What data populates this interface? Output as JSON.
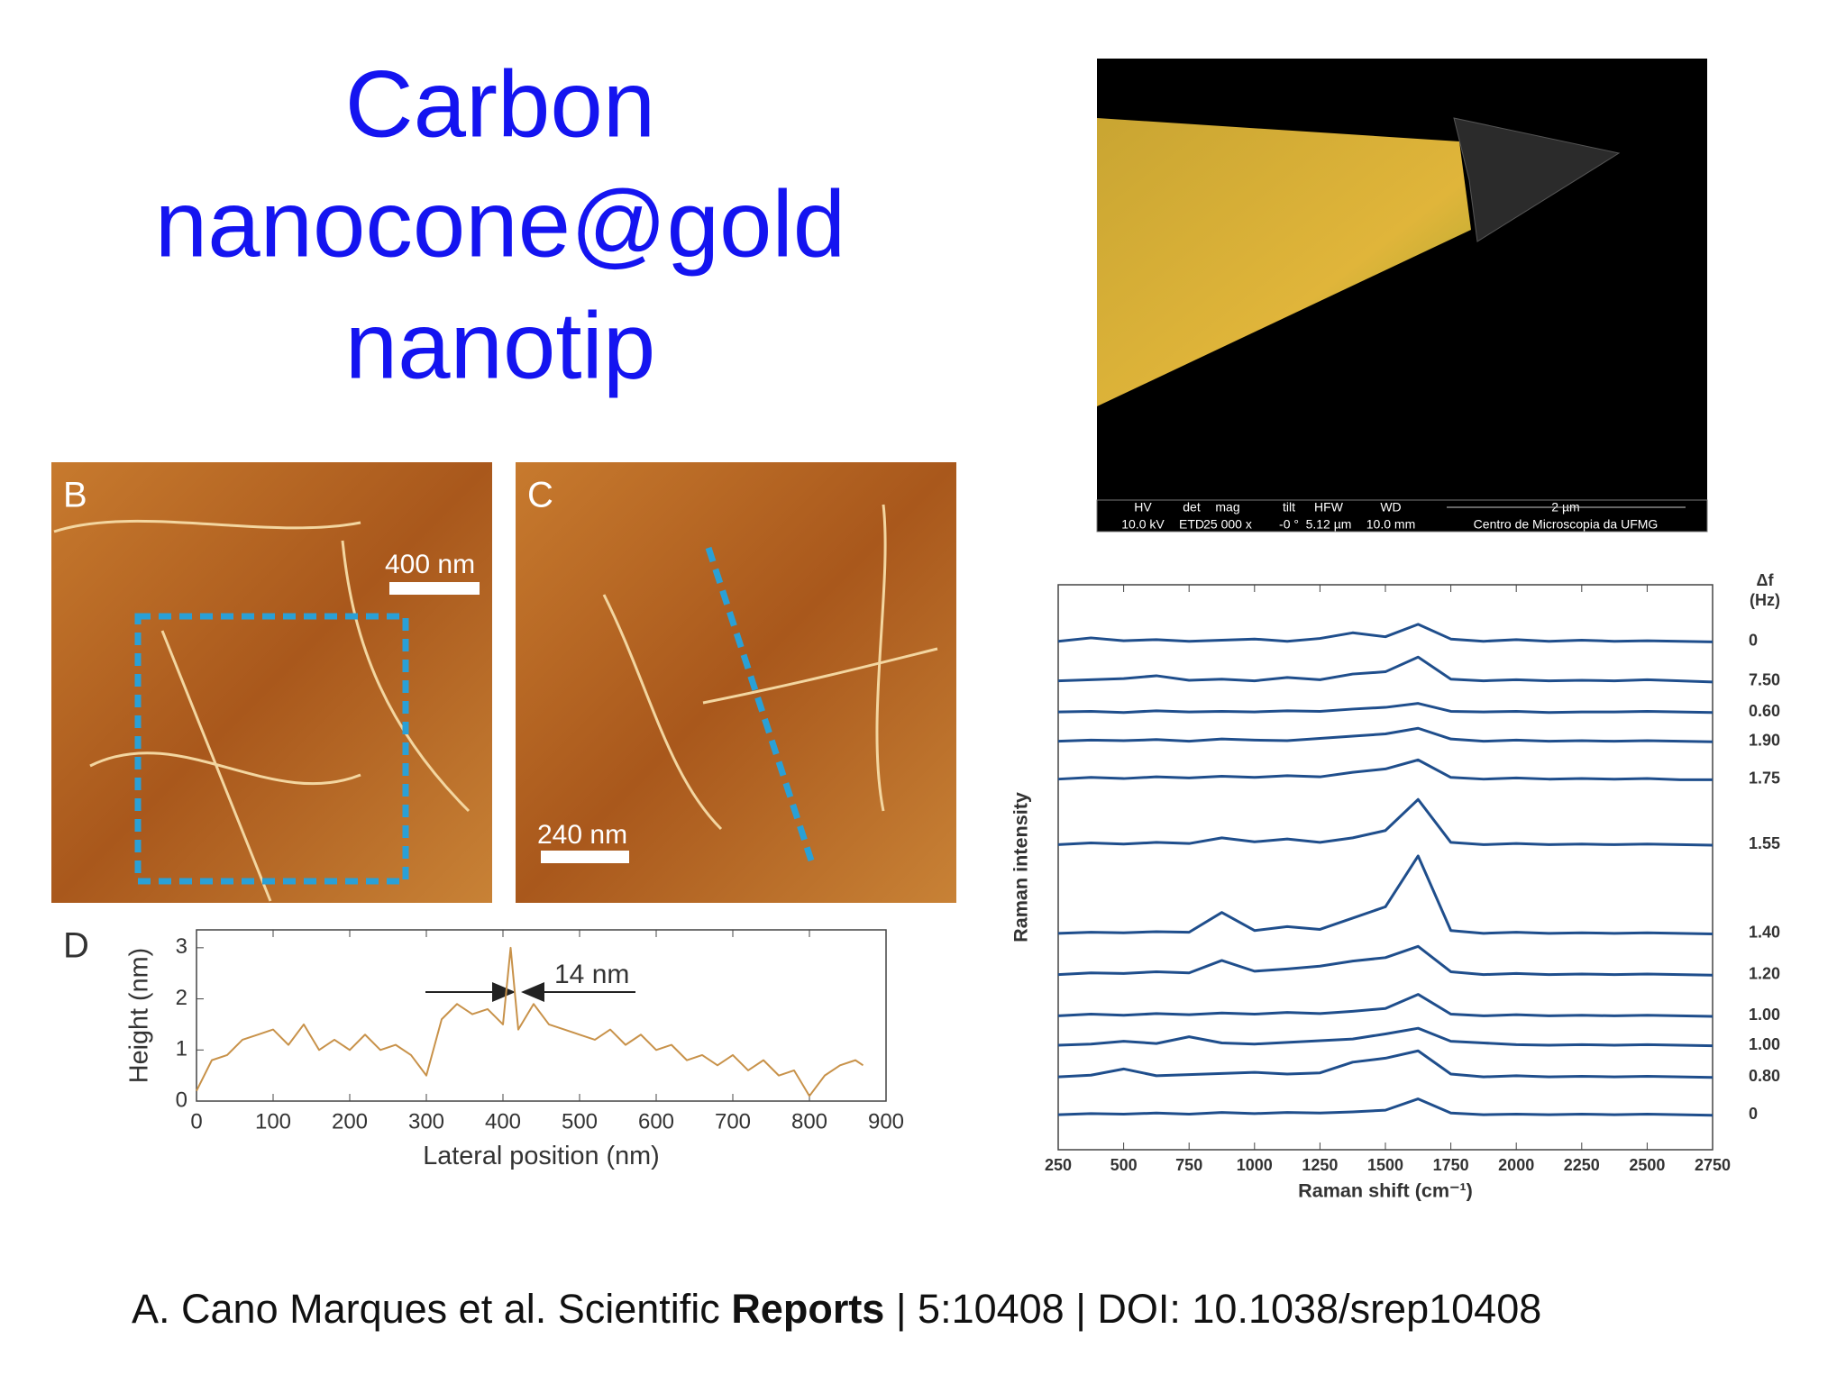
{
  "title": [
    "Carbon",
    "nanocone@gold",
    "nanotip"
  ],
  "sem_info": [
    "HV",
    "det",
    "mag",
    "tilt",
    "HFW",
    "WD",
    "10.0 kV",
    "ETD",
    "25 000 x",
    "-0 °",
    "5.12 µm",
    "10.0 mm",
    "2 µm",
    "Centro de Microscopia da UFMG"
  ],
  "afm": [
    {
      "label": "B",
      "scale": "400 nm"
    },
    {
      "label": "C",
      "scale": "240 nm"
    }
  ],
  "citation": {
    "before": "A. Cano  Marques et al. Scientific ",
    "bold": "Reports",
    "after": " | 5:10408 | DOI: 10.1038/srep10408"
  },
  "chart_data": [
    {
      "type": "line",
      "label": "D",
      "x_label": "Lateral position (nm)",
      "y_label": "Height (nm)",
      "annotation": "14 nm",
      "x": [
        0,
        20,
        40,
        60,
        80,
        100,
        120,
        140,
        160,
        180,
        200,
        220,
        240,
        260,
        280,
        300,
        320,
        340,
        360,
        380,
        400,
        410,
        420,
        440,
        460,
        480,
        500,
        520,
        540,
        560,
        580,
        600,
        620,
        640,
        660,
        680,
        700,
        720,
        740,
        760,
        780,
        800,
        820,
        840,
        860,
        870
      ],
      "series": [
        {
          "color": "#c8924a",
          "values": [
            0.2,
            0.8,
            0.9,
            1.2,
            1.3,
            1.4,
            1.1,
            1.5,
            1.0,
            1.2,
            1.0,
            1.3,
            1.0,
            1.1,
            0.9,
            0.5,
            1.6,
            1.9,
            1.7,
            1.8,
            1.5,
            3.0,
            1.4,
            1.9,
            1.5,
            1.4,
            1.3,
            1.2,
            1.4,
            1.1,
            1.3,
            1.0,
            1.1,
            0.8,
            0.9,
            0.7,
            0.9,
            0.6,
            0.8,
            0.5,
            0.6,
            0.1,
            0.5,
            0.7,
            0.8,
            0.7
          ]
        }
      ],
      "xlim": [
        0,
        900
      ],
      "ylim": [
        0,
        3.35
      ],
      "xticks": [
        0,
        100,
        200,
        300,
        400,
        500,
        600,
        700,
        800,
        900
      ],
      "yticks": [
        0,
        1,
        2,
        3
      ]
    },
    {
      "type": "line",
      "x_label": "Raman shift (cm⁻¹)",
      "y_label": "Raman intensity",
      "legend_title": "Δf",
      "legend_unit": "(Hz)",
      "x": [
        250,
        375,
        500,
        625,
        750,
        875,
        1000,
        1125,
        1250,
        1375,
        1500,
        1625,
        1750,
        1875,
        2000,
        2125,
        2250,
        2375,
        2500,
        2625,
        2750
      ],
      "series": [
        {
          "name": "0",
          "color": "#1f4e8c",
          "values": [
            90,
            90.6,
            90.1,
            90.3,
            90,
            90.2,
            90.4,
            90,
            90.5,
            91.5,
            90.8,
            93,
            90.4,
            90,
            90.3,
            90,
            90.2,
            90,
            90.1,
            90,
            89.9
          ]
        },
        {
          "name": "7.50",
          "color": "#1f4e8c",
          "values": [
            83,
            83.2,
            83.4,
            83.9,
            83.1,
            83.3,
            83,
            83.6,
            83.2,
            84.2,
            84.6,
            87.2,
            83.3,
            83,
            83.2,
            83,
            83.1,
            83,
            83.2,
            83,
            82.8
          ]
        },
        {
          "name": "0.60",
          "color": "#1f4e8c",
          "values": [
            77.5,
            77.6,
            77.4,
            77.7,
            77.5,
            77.6,
            77.5,
            77.7,
            77.6,
            78,
            78.3,
            79,
            77.6,
            77.5,
            77.6,
            77.4,
            77.5,
            77.5,
            77.6,
            77.5,
            77.4
          ]
        },
        {
          "name": "1.90",
          "color": "#1f4e8c",
          "values": [
            72.3,
            72.5,
            72.4,
            72.6,
            72.3,
            72.7,
            72.5,
            72.4,
            72.8,
            73.2,
            73.6,
            74.6,
            72.7,
            72.3,
            72.5,
            72.3,
            72.4,
            72.3,
            72.4,
            72.3,
            72.2
          ]
        },
        {
          "name": "1.75",
          "color": "#1f4e8c",
          "values": [
            65.6,
            65.9,
            65.7,
            66,
            65.8,
            66.1,
            65.9,
            66.2,
            66,
            66.8,
            67.4,
            69,
            65.9,
            65.6,
            65.8,
            65.6,
            65.7,
            65.6,
            65.7,
            65.5,
            65.5
          ]
        },
        {
          "name": "1.55",
          "color": "#1f4e8c",
          "values": [
            54,
            54.3,
            54.1,
            54.4,
            54.2,
            55.2,
            54.5,
            55,
            54.4,
            55.2,
            56.5,
            62,
            54.4,
            54,
            54.2,
            54,
            54.1,
            54,
            54.1,
            54,
            53.9
          ]
        },
        {
          "name": "1.40",
          "color": "#1f4e8c",
          "values": [
            38.3,
            38.5,
            38.4,
            38.6,
            38.5,
            42,
            38.8,
            39.5,
            39,
            41,
            43,
            52,
            38.8,
            38.3,
            38.5,
            38.3,
            38.4,
            38.3,
            38.4,
            38.3,
            38.2
          ]
        },
        {
          "name": "1.20",
          "color": "#1f4e8c",
          "values": [
            31,
            31.3,
            31.2,
            31.5,
            31.3,
            33.5,
            31.6,
            32,
            32.5,
            33.4,
            34,
            36,
            31.5,
            31,
            31.2,
            31,
            31.1,
            31,
            31.1,
            31,
            30.9
          ]
        },
        {
          "name": "1.00",
          "color": "#1f4e8c",
          "values": [
            23.7,
            24,
            23.8,
            24.1,
            23.9,
            24.2,
            24,
            24.3,
            24.1,
            24.5,
            25,
            27.5,
            24,
            23.7,
            23.9,
            23.7,
            23.8,
            23.7,
            23.8,
            23.7,
            23.6
          ]
        },
        {
          "name": "1.00",
          "color": "#1f4e8c",
          "values": [
            18.5,
            18.7,
            19.2,
            18.8,
            20,
            18.9,
            18.7,
            19,
            19.3,
            19.6,
            20.5,
            21.5,
            19.2,
            18.9,
            18.6,
            18.5,
            18.6,
            18.5,
            18.6,
            18.5,
            18.4
          ]
        },
        {
          "name": "0.80",
          "color": "#1f4e8c",
          "values": [
            12.9,
            13.2,
            14.3,
            13.1,
            13.3,
            13.5,
            13.7,
            13.4,
            13.6,
            15.5,
            16.2,
            17.5,
            13.4,
            12.9,
            13.1,
            12.9,
            13,
            12.9,
            13,
            12.9,
            12.8
          ]
        },
        {
          "name": "0",
          "color": "#1f4e8c",
          "values": [
            6.2,
            6.4,
            6.3,
            6.5,
            6.3,
            6.6,
            6.4,
            6.6,
            6.5,
            6.7,
            7,
            9,
            6.5,
            6.2,
            6.3,
            6.2,
            6.3,
            6.2,
            6.3,
            6.2,
            6.1
          ]
        }
      ],
      "xlim": [
        250,
        2750
      ],
      "ylim": [
        0,
        100
      ],
      "xticks": [
        250,
        500,
        750,
        1000,
        1250,
        1500,
        1750,
        2000,
        2250,
        2500,
        2750
      ]
    }
  ]
}
